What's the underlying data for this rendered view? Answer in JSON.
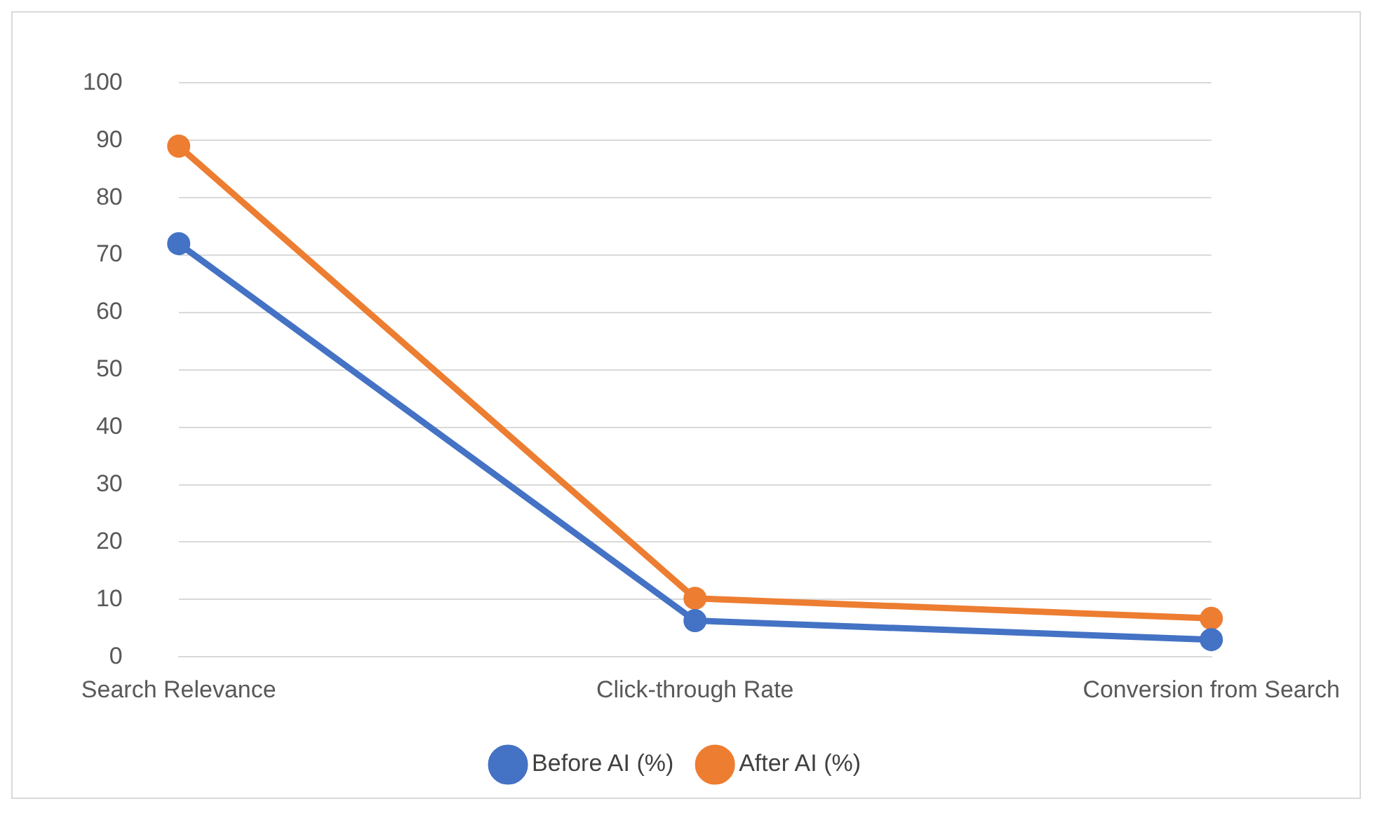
{
  "chart_data": {
    "type": "line",
    "categories": [
      "Search Relevance",
      "Click-through Rate",
      "Conversion from Search"
    ],
    "series": [
      {
        "name": "Before AI (%)",
        "color": "#4472c4",
        "values": [
          72,
          6.3,
          3.0
        ]
      },
      {
        "name": "After AI (%)",
        "color": "#ed7d31",
        "values": [
          89,
          10.2,
          6.7
        ]
      }
    ],
    "ylim": [
      0,
      100
    ],
    "yticks": [
      0,
      10,
      20,
      30,
      40,
      50,
      60,
      70,
      80,
      90,
      100
    ],
    "grid": "y",
    "legend": "bottom",
    "marker": "circle",
    "line_style": "solid"
  }
}
